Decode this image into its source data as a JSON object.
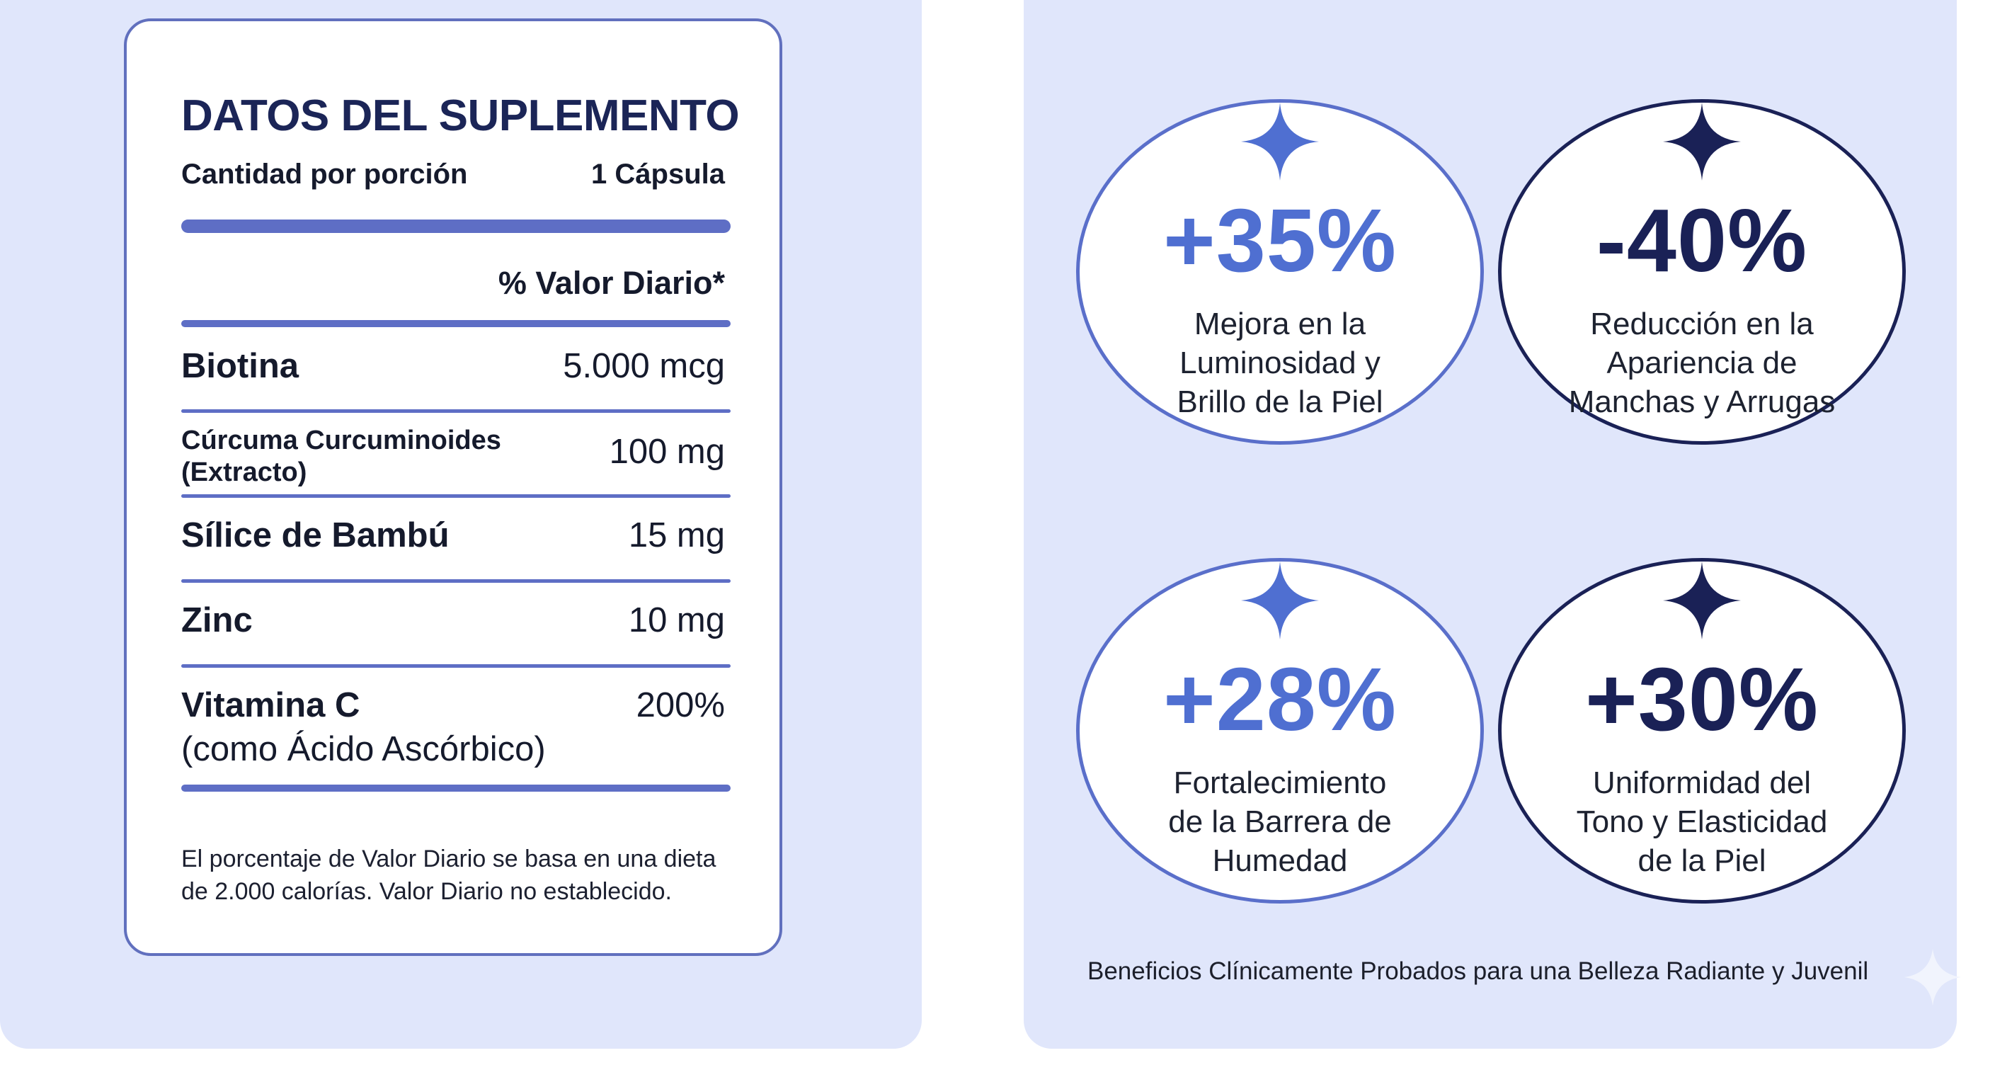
{
  "label": {
    "title": "DATOS DEL SUPLEMENTO",
    "serving_label": "Cantidad por porción",
    "serving_value": "1 Cápsula",
    "dv_header": "% Valor Diario*",
    "nutrients": [
      {
        "name": "Biotina",
        "value": "5.000 mcg"
      },
      {
        "name_line1": "Cúrcuma Curcuminoides",
        "name_line2": "(Extracto)",
        "value": "100 mg"
      },
      {
        "name": "Sílice de Bambú",
        "value": "15 mg"
      },
      {
        "name": "Zinc",
        "value": "10 mg"
      },
      {
        "name": "Vitamina C",
        "subname": "(como Ácido Ascórbico)",
        "value": "200%"
      }
    ],
    "footnote": "El porcentaje de Valor Diario se basa en una dieta de 2.000 calorías. Valor Diario no establecido."
  },
  "benefits": [
    {
      "stat": "+35%",
      "lines": [
        "Mejora en la",
        "Luminosidad y",
        "Brillo de la Piel"
      ],
      "style": "light"
    },
    {
      "stat": "-40%",
      "lines": [
        "Reducción en la",
        "Apariencia de",
        "Manchas y Arrugas"
      ],
      "style": "dark"
    },
    {
      "stat": "+28%",
      "lines": [
        "Fortalecimiento",
        "de la Barrera de",
        "Humedad"
      ],
      "style": "light"
    },
    {
      "stat": "+30%",
      "lines": [
        "Uniformidad del",
        "Tono y Elasticidad",
        "de la Piel"
      ],
      "style": "dark"
    }
  ],
  "tagline": "Beneficios Clínicamente Probados para una Belleza Radiante y Juvenil",
  "colors": {
    "panel_bg": "#e0e6fb",
    "accent_blue": "#4f6fd1",
    "navy": "#1a2156",
    "rule_blue": "#5e6ec5"
  },
  "icons": [
    "sparkle-icon"
  ]
}
